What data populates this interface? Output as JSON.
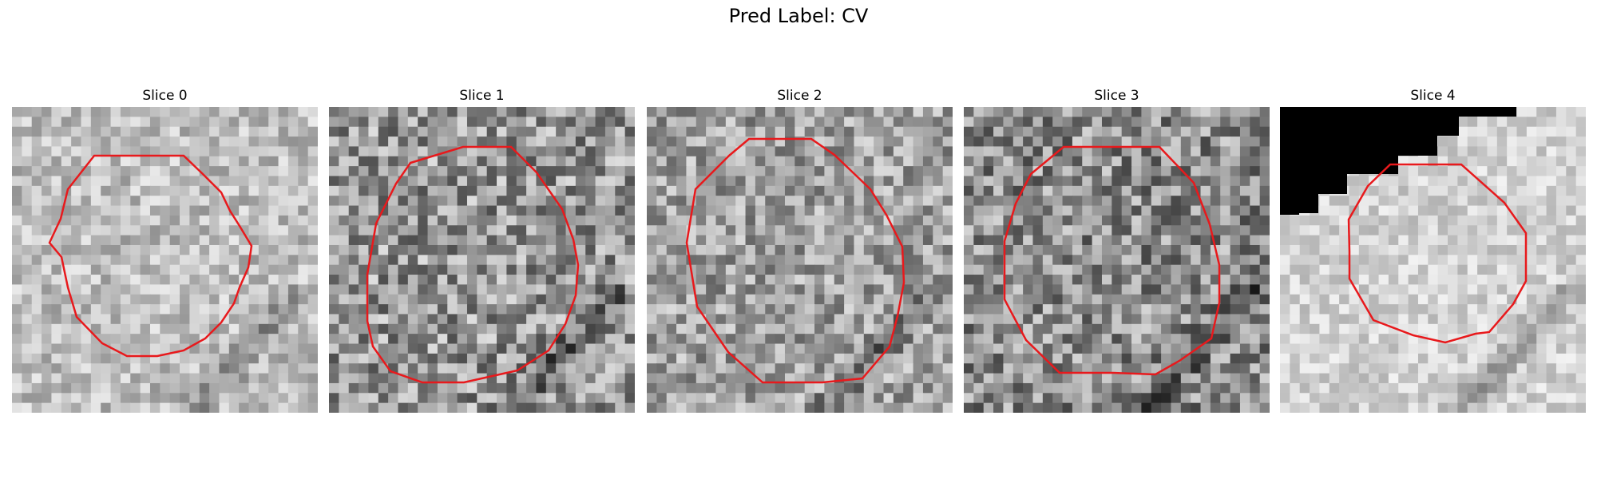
{
  "figure": {
    "title": "Pred Label: CV"
  },
  "panels": [
    {
      "title": "Slice 0",
      "seed": 11,
      "base": 190,
      "spread": 55
    },
    {
      "title": "Slice 1",
      "seed": 23,
      "base": 150,
      "spread": 90
    },
    {
      "title": "Slice 2",
      "seed": 37,
      "base": 160,
      "spread": 75
    },
    {
      "title": "Slice 3",
      "seed": 51,
      "base": 140,
      "spread": 90
    },
    {
      "title": "Slice 4",
      "seed": 67,
      "base": 210,
      "spread": 40
    }
  ],
  "colors": {
    "contour": "#e8191c",
    "background": "#ffffff",
    "mask": "#000000"
  }
}
